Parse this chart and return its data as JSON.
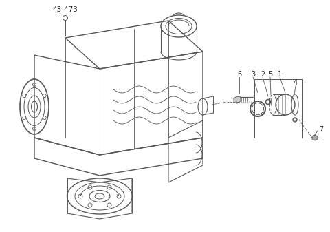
{
  "background_color": "#ffffff",
  "line_color": "#555555",
  "text_color": "#222222",
  "label_43_473": "43-473",
  "part_labels": [
    "1",
    "2",
    "3",
    "4",
    "5",
    "6",
    "7"
  ],
  "fig_width": 4.8,
  "fig_height": 3.37,
  "dpi": 100
}
